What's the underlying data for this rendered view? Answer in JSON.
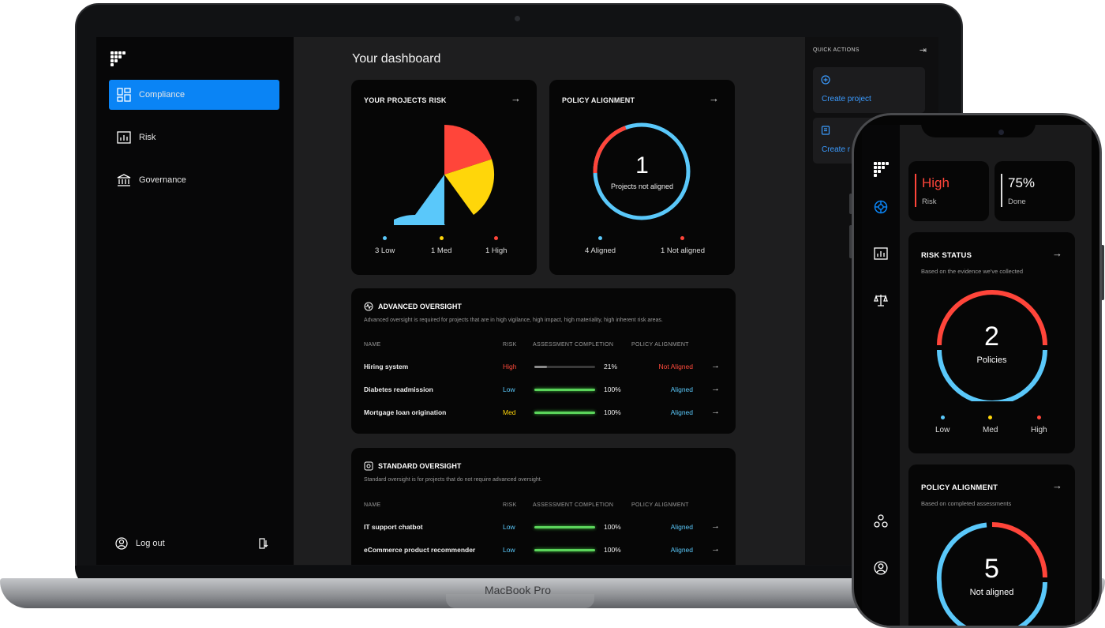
{
  "laptop": {
    "brand": "MacBook Pro",
    "sidebar": {
      "items": [
        {
          "label": "Compliance",
          "icon": "dashboard-icon",
          "active": true
        },
        {
          "label": "Risk",
          "icon": "chart-icon",
          "active": false
        },
        {
          "label": "Governance",
          "icon": "bank-icon",
          "active": false
        }
      ],
      "logout": "Log out"
    },
    "title": "Your dashboard",
    "projects_risk": {
      "title": "YOUR PROJECTS RISK",
      "legend": [
        "3 Low",
        "1 Med",
        "1 High"
      ],
      "slices": [
        {
          "label": "Low",
          "value": 3,
          "color": "#5ac8fa"
        },
        {
          "label": "Med",
          "value": 1,
          "color": "#ffd60a"
        },
        {
          "label": "High",
          "value": 1,
          "color": "#ff453a"
        }
      ]
    },
    "policy_alignment": {
      "title": "POLICY ALIGNMENT",
      "value": "1",
      "caption": "Projects not aligned",
      "legend": [
        "4 Aligned",
        "1 Not aligned"
      ],
      "aligned": 4,
      "not_aligned": 1
    },
    "advanced": {
      "title": "ADVANCED OVERSIGHT",
      "desc": "Advanced oversight is required for projects that are in high vigilance, high impact, high materiality, high inherent risk areas.",
      "headers": [
        "NAME",
        "RISK",
        "ASSESSMENT COMPLETION",
        "POLICY ALIGNMENT"
      ],
      "rows": [
        {
          "name": "Hiring system",
          "risk": "High",
          "completion": "21%",
          "completion_value": 21,
          "alignment": "Not Aligned"
        },
        {
          "name": "Diabetes readmission",
          "risk": "Low",
          "completion": "100%",
          "completion_value": 100,
          "alignment": "Aligned"
        },
        {
          "name": "Mortgage loan origination",
          "risk": "Med",
          "completion": "100%",
          "completion_value": 100,
          "alignment": "Aligned"
        }
      ]
    },
    "standard": {
      "title": "STANDARD OVERSIGHT",
      "desc": "Standard oversight is for projects that do not require advanced oversight.",
      "headers": [
        "NAME",
        "RISK",
        "ASSESSMENT COMPLETION",
        "POLICY ALIGNMENT"
      ],
      "rows": [
        {
          "name": "IT support chatbot",
          "risk": "Low",
          "completion": "100%",
          "completion_value": 100,
          "alignment": "Aligned"
        },
        {
          "name": "eCommerce product recommender",
          "risk": "Low",
          "completion": "100%",
          "completion_value": 100,
          "alignment": "Aligned"
        }
      ]
    },
    "quick_actions": {
      "title": "QUICK ACTIONS",
      "cards": [
        {
          "label": "Create project"
        },
        {
          "label": "Create r"
        }
      ]
    }
  },
  "phone": {
    "stats": [
      {
        "value": "High",
        "label": "Risk",
        "color": "#ff453a"
      },
      {
        "value": "75%",
        "label": "Done",
        "color": "#ffffff"
      }
    ],
    "risk_status": {
      "title": "RISK STATUS",
      "subtitle": "Based on the evidence we've collected",
      "value": "2",
      "caption": "Policies",
      "legend": [
        "Low",
        "Med",
        "High"
      ]
    },
    "policy_alignment": {
      "title": "POLICY ALIGNMENT",
      "subtitle": "Based on completed assessments",
      "value": "5",
      "caption": "Not aligned"
    }
  },
  "colors": {
    "accent": "#0a84f5",
    "low": "#5ac8fa",
    "med": "#ffd60a",
    "high": "#ff453a",
    "progress": "#5bd45b"
  }
}
